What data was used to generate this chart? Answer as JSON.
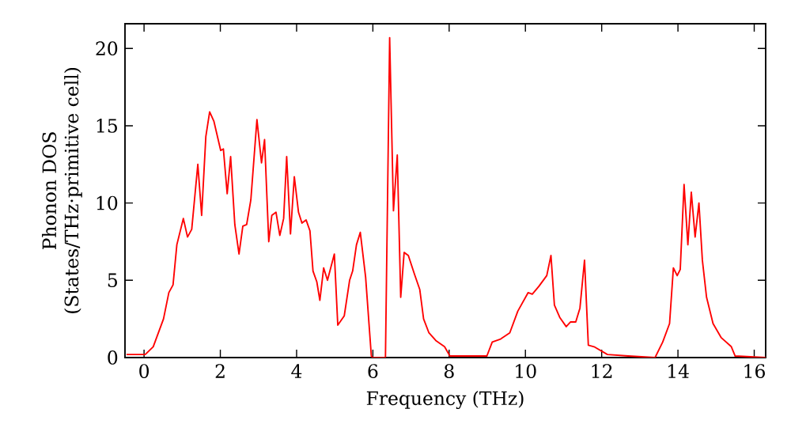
{
  "chart_data": {
    "type": "line",
    "xlabel": "Frequency (THz)",
    "ylabel": "Phonon DOS\n(States/THz·primitive cell)",
    "xlim": [
      -0.5,
      16.3
    ],
    "ylim": [
      0,
      21.6
    ],
    "xticks": [
      0,
      2,
      4,
      6,
      8,
      10,
      12,
      14,
      16
    ],
    "yticks": [
      0,
      5,
      10,
      15,
      20
    ],
    "grid": false,
    "marker": "none",
    "line_style": "solid",
    "series": [
      {
        "color": "#ff0000",
        "x": [
          -0.46,
          0.03,
          0.24,
          0.51,
          0.65,
          0.76,
          0.86,
          1.03,
          1.14,
          1.25,
          1.41,
          1.51,
          1.62,
          1.72,
          1.83,
          2.01,
          2.08,
          2.18,
          2.27,
          2.38,
          2.49,
          2.59,
          2.69,
          2.8,
          2.96,
          3.08,
          3.16,
          3.27,
          3.35,
          3.46,
          3.56,
          3.66,
          3.74,
          3.84,
          3.94,
          4.05,
          4.14,
          4.25,
          4.35,
          4.43,
          4.53,
          4.61,
          4.71,
          4.81,
          4.99,
          5.08,
          5.25,
          5.39,
          5.47,
          5.57,
          5.67,
          5.81,
          5.96,
          5.99,
          6.33,
          6.44,
          6.54,
          6.64,
          6.73,
          6.82,
          6.93,
          7.09,
          7.23,
          7.33,
          7.47,
          7.65,
          7.88,
          8.02,
          8.99,
          9.13,
          9.35,
          9.59,
          9.8,
          10.07,
          10.18,
          10.35,
          10.56,
          10.67,
          10.76,
          10.9,
          11.07,
          11.18,
          11.32,
          11.43,
          11.55,
          11.65,
          11.8,
          12.15,
          12.7,
          13.4,
          13.6,
          13.78,
          13.88,
          13.98,
          14.06,
          14.16,
          14.26,
          14.35,
          14.45,
          14.55,
          14.64,
          14.75,
          14.92,
          15.13,
          15.4,
          15.5,
          16.3
        ],
        "values": [
          0.2,
          0.2,
          0.7,
          2.5,
          4.2,
          4.7,
          7.3,
          9.0,
          7.8,
          8.3,
          12.5,
          9.2,
          14.3,
          15.9,
          15.3,
          13.4,
          13.5,
          10.6,
          13.0,
          8.6,
          6.7,
          8.5,
          8.6,
          10.2,
          15.4,
          12.6,
          14.1,
          7.5,
          9.2,
          9.4,
          7.9,
          9.0,
          13.0,
          8.0,
          11.7,
          9.4,
          8.7,
          8.9,
          8.2,
          5.6,
          4.9,
          3.7,
          5.8,
          5.0,
          6.7,
          2.1,
          2.7,
          5.0,
          5.6,
          7.3,
          8.1,
          5.2,
          0.1,
          0,
          0,
          20.7,
          9.5,
          13.1,
          3.9,
          6.8,
          6.6,
          5.4,
          4.4,
          2.5,
          1.6,
          1.1,
          0.7,
          0.1,
          0.1,
          1.0,
          1.2,
          1.6,
          3.0,
          4.2,
          4.1,
          4.6,
          5.3,
          6.6,
          3.4,
          2.6,
          2.0,
          2.3,
          2.3,
          3.2,
          6.3,
          0.8,
          0.7,
          0.2,
          0.1,
          0.0,
          1.0,
          2.2,
          5.8,
          5.3,
          5.7,
          11.2,
          7.3,
          10.7,
          7.8,
          10.0,
          6.3,
          3.9,
          2.2,
          1.3,
          0.7,
          0.1,
          0.0
        ]
      }
    ]
  }
}
